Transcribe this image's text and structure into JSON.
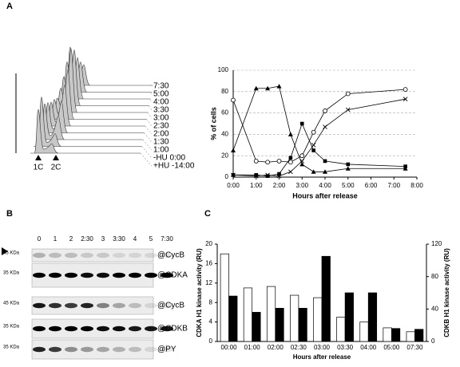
{
  "panel_labels": [
    "A",
    "B",
    "C"
  ],
  "flow": {
    "time_labels": [
      "+HU  -14:00",
      "-HU 0:00",
      "1:00",
      "1:30",
      "2:00",
      "2:30",
      "3:00",
      "3:30",
      "4:00",
      "5:00",
      "7:30"
    ],
    "peak_labels": [
      "1C",
      "2C"
    ]
  },
  "blot": {
    "lanes": [
      "0",
      "1",
      "2",
      "2:30",
      "3",
      "3:30",
      "4",
      "5",
      "7:30"
    ],
    "rows": [
      {
        "marker": "45 KDa",
        "antibody": "@CycB"
      },
      {
        "marker": "35 KDa",
        "antibody": "@CDKA"
      },
      {
        "marker": "45 KDa",
        "antibody": "@CycB"
      },
      {
        "marker": "35 KDa",
        "antibody": "@CDKB"
      },
      {
        "marker": "35 KDa",
        "antibody": "@PY"
      }
    ]
  },
  "chart_data": [
    {
      "type": "line",
      "ylabel": "% of cells",
      "xlabel": "Hours after release",
      "xlim": [
        0,
        8
      ],
      "xticks": [
        {
          "value": 0,
          "label": "0:00"
        },
        {
          "value": 1,
          "label": "1:00"
        },
        {
          "value": 2,
          "label": "2:00"
        },
        {
          "value": 3,
          "label": "3:00"
        },
        {
          "value": 4,
          "label": "4:00"
        },
        {
          "value": 5,
          "label": "5:00"
        },
        {
          "value": 6,
          "label": "6:00"
        },
        {
          "value": 7,
          "label": "7:00"
        },
        {
          "value": 8,
          "label": "8:00"
        }
      ],
      "ylim": [
        0,
        100
      ],
      "yticks": [
        0,
        20,
        40,
        60,
        80,
        100
      ],
      "grid": true,
      "x": [
        0,
        1,
        1.5,
        2,
        2.5,
        3,
        3.5,
        4,
        5,
        7.5
      ],
      "series": [
        {
          "color": "#000000",
          "marker": "circle",
          "values": [
            72,
            15,
            14,
            15,
            14,
            20,
            42,
            62,
            78,
            82
          ]
        },
        {
          "color": "#000000",
          "marker": "x",
          "values": [
            2,
            1,
            2,
            1,
            5,
            15,
            30,
            47,
            63,
            73
          ]
        },
        {
          "color": "#000000",
          "marker": "triangle",
          "values": [
            25,
            83,
            83,
            85,
            40,
            12,
            5,
            5,
            8,
            8
          ]
        },
        {
          "color": "#000000",
          "marker": "square",
          "values": [
            2,
            2,
            1,
            3,
            18,
            50,
            25,
            15,
            12,
            10
          ]
        }
      ]
    },
    {
      "type": "bar",
      "ylabel": "CDKA H1 kinase activity (RU)",
      "y2label": "CDKB H1 kinase activity (RU)",
      "xlabel": "Hours after release",
      "categories": [
        "00:00",
        "01:00",
        "02:00",
        "02:30",
        "03:00",
        "03:30",
        "04:00",
        "05:00",
        "07:30"
      ],
      "ylim": [
        0,
        20
      ],
      "yticks": [
        0,
        4,
        8,
        12,
        16,
        20
      ],
      "y2lim": [
        0,
        120
      ],
      "y2ticks": [
        0,
        40,
        80,
        120
      ],
      "series": [
        {
          "color": "#ffffff",
          "values": [
            18,
            11,
            11.3,
            9.5,
            9,
            5,
            4,
            2.8,
            2
          ]
        },
        {
          "color": "#000000",
          "axis": "y2",
          "values": [
            56,
            36,
            41,
            41,
            105,
            60,
            60,
            16,
            15
          ]
        }
      ]
    }
  ]
}
